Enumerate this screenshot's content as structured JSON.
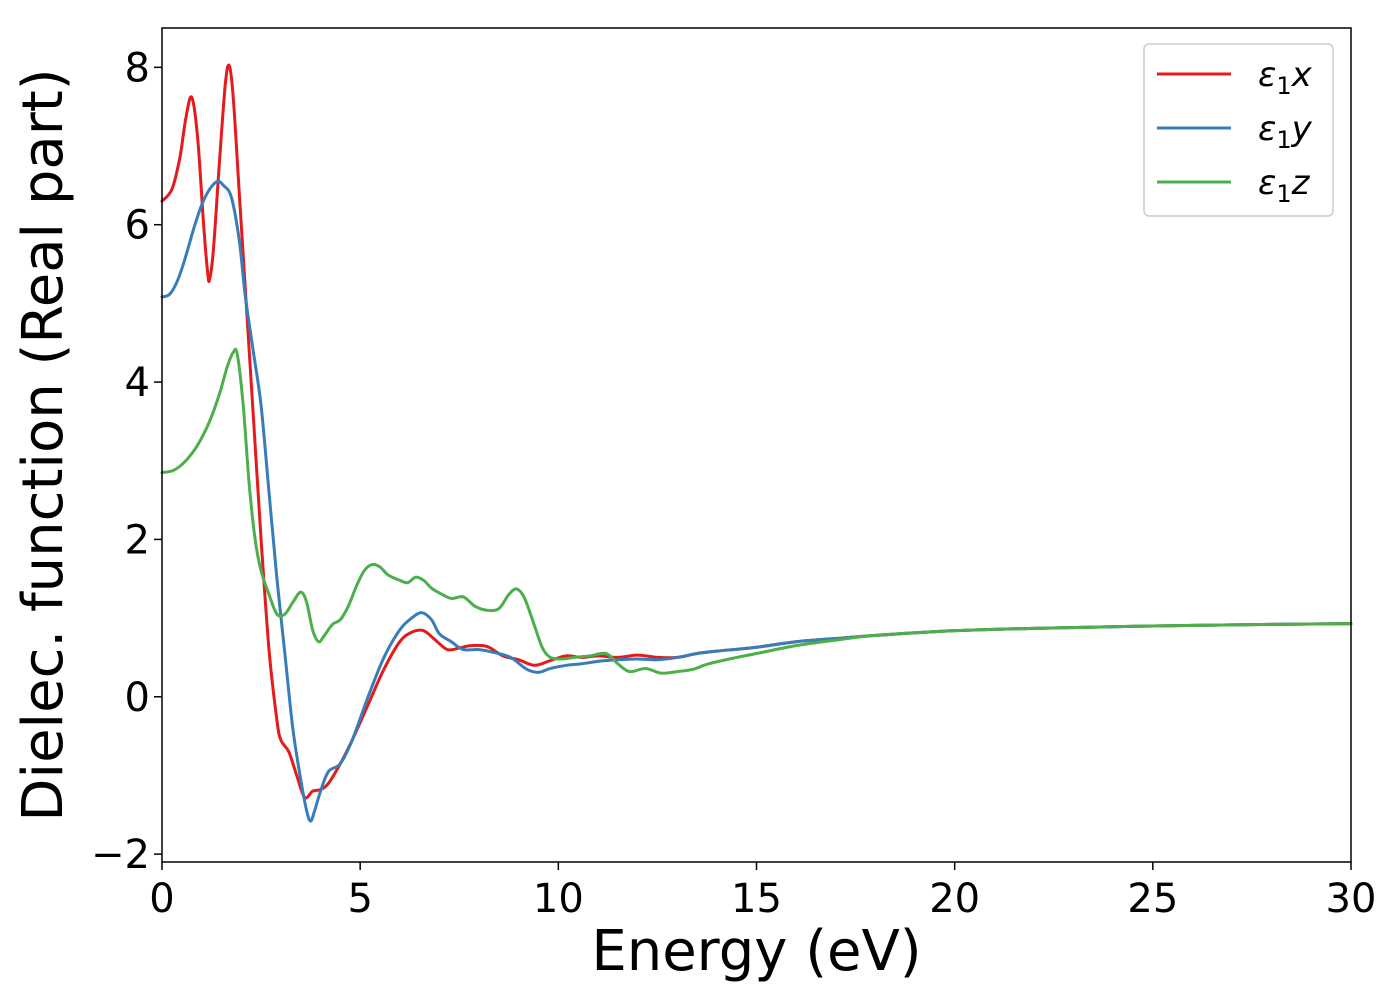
{
  "chart_data": {
    "type": "line",
    "xlabel": "Energy (eV)",
    "ylabel": "Dielec. function (Real part)",
    "xlim": [
      0,
      30
    ],
    "ylim": [
      -2.1,
      8.5
    ],
    "xticks": [
      0,
      5,
      10,
      15,
      20,
      25,
      30
    ],
    "yticks": [
      -2,
      0,
      2,
      4,
      6,
      8
    ],
    "xtick_labels": [
      "0",
      "5",
      "10",
      "15",
      "20",
      "25",
      "30"
    ],
    "ytick_labels": [
      "−2",
      "0",
      "2",
      "4",
      "6",
      "8"
    ],
    "grid": false,
    "legend_position": "top-right",
    "series": [
      {
        "name": "ε1x",
        "color": "#e41a1c",
        "points": [
          [
            0,
            6.3
          ],
          [
            0.25,
            6.45
          ],
          [
            0.45,
            6.85
          ],
          [
            0.6,
            7.35
          ],
          [
            0.75,
            7.62
          ],
          [
            0.9,
            7.1
          ],
          [
            1.05,
            6.0
          ],
          [
            1.15,
            5.4
          ],
          [
            1.2,
            5.3
          ],
          [
            1.3,
            5.7
          ],
          [
            1.45,
            6.8
          ],
          [
            1.6,
            7.8
          ],
          [
            1.7,
            8.02
          ],
          [
            1.8,
            7.6
          ],
          [
            1.95,
            6.4
          ],
          [
            2.1,
            5.2
          ],
          [
            2.3,
            3.6
          ],
          [
            2.5,
            2.0
          ],
          [
            2.7,
            0.6
          ],
          [
            2.9,
            -0.3
          ],
          [
            3.0,
            -0.55
          ],
          [
            3.2,
            -0.7
          ],
          [
            3.4,
            -1.0
          ],
          [
            3.6,
            -1.28
          ],
          [
            3.8,
            -1.2
          ],
          [
            4.0,
            -1.18
          ],
          [
            4.2,
            -1.1
          ],
          [
            4.5,
            -0.85
          ],
          [
            4.8,
            -0.55
          ],
          [
            5.2,
            -0.1
          ],
          [
            5.6,
            0.35
          ],
          [
            6.0,
            0.7
          ],
          [
            6.3,
            0.82
          ],
          [
            6.6,
            0.84
          ],
          [
            6.9,
            0.72
          ],
          [
            7.2,
            0.6
          ],
          [
            7.5,
            0.62
          ],
          [
            7.8,
            0.65
          ],
          [
            8.2,
            0.64
          ],
          [
            8.6,
            0.52
          ],
          [
            9.0,
            0.47
          ],
          [
            9.4,
            0.4
          ],
          [
            9.8,
            0.46
          ],
          [
            10.2,
            0.52
          ],
          [
            10.6,
            0.5
          ],
          [
            11.0,
            0.52
          ],
          [
            11.5,
            0.5
          ],
          [
            12.0,
            0.53
          ],
          [
            12.5,
            0.5
          ],
          [
            13.0,
            0.5
          ],
          [
            13.5,
            0.55
          ],
          [
            14.0,
            0.58
          ],
          [
            15.0,
            0.63
          ],
          [
            16.0,
            0.7
          ],
          [
            17.0,
            0.74
          ],
          [
            18.0,
            0.78
          ],
          [
            20.0,
            0.84
          ],
          [
            22.0,
            0.87
          ],
          [
            25.0,
            0.9
          ],
          [
            28.0,
            0.92
          ],
          [
            30.0,
            0.93
          ]
        ]
      },
      {
        "name": "ε1y",
        "color": "#377eb8",
        "points": [
          [
            0,
            5.08
          ],
          [
            0.2,
            5.12
          ],
          [
            0.4,
            5.3
          ],
          [
            0.6,
            5.6
          ],
          [
            0.8,
            5.95
          ],
          [
            1.0,
            6.25
          ],
          [
            1.2,
            6.45
          ],
          [
            1.4,
            6.55
          ],
          [
            1.55,
            6.5
          ],
          [
            1.75,
            6.35
          ],
          [
            1.95,
            5.8
          ],
          [
            2.1,
            5.1
          ],
          [
            2.3,
            4.4
          ],
          [
            2.5,
            3.7
          ],
          [
            2.7,
            2.6
          ],
          [
            2.9,
            1.5
          ],
          [
            3.1,
            0.55
          ],
          [
            3.3,
            -0.4
          ],
          [
            3.5,
            -1.05
          ],
          [
            3.65,
            -1.45
          ],
          [
            3.75,
            -1.58
          ],
          [
            3.85,
            -1.45
          ],
          [
            4.0,
            -1.2
          ],
          [
            4.2,
            -0.95
          ],
          [
            4.5,
            -0.85
          ],
          [
            4.8,
            -0.55
          ],
          [
            5.2,
            0.0
          ],
          [
            5.6,
            0.5
          ],
          [
            6.0,
            0.85
          ],
          [
            6.3,
            1.0
          ],
          [
            6.55,
            1.07
          ],
          [
            6.8,
            0.98
          ],
          [
            7.0,
            0.8
          ],
          [
            7.3,
            0.7
          ],
          [
            7.6,
            0.6
          ],
          [
            8.0,
            0.6
          ],
          [
            8.4,
            0.56
          ],
          [
            8.8,
            0.5
          ],
          [
            9.2,
            0.35
          ],
          [
            9.5,
            0.31
          ],
          [
            9.8,
            0.36
          ],
          [
            10.2,
            0.4
          ],
          [
            10.6,
            0.42
          ],
          [
            11.0,
            0.45
          ],
          [
            11.5,
            0.47
          ],
          [
            12.0,
            0.48
          ],
          [
            12.5,
            0.47
          ],
          [
            13.0,
            0.5
          ],
          [
            13.5,
            0.55
          ],
          [
            14.0,
            0.58
          ],
          [
            15.0,
            0.63
          ],
          [
            16.0,
            0.7
          ],
          [
            17.0,
            0.74
          ],
          [
            18.0,
            0.78
          ],
          [
            20.0,
            0.84
          ],
          [
            22.0,
            0.87
          ],
          [
            25.0,
            0.9
          ],
          [
            28.0,
            0.92
          ],
          [
            30.0,
            0.93
          ]
        ]
      },
      {
        "name": "ε1z",
        "color": "#4daf4a",
        "points": [
          [
            0,
            2.85
          ],
          [
            0.3,
            2.88
          ],
          [
            0.6,
            3.0
          ],
          [
            0.9,
            3.2
          ],
          [
            1.2,
            3.5
          ],
          [
            1.45,
            3.85
          ],
          [
            1.65,
            4.2
          ],
          [
            1.8,
            4.38
          ],
          [
            1.9,
            4.35
          ],
          [
            2.05,
            3.7
          ],
          [
            2.2,
            2.7
          ],
          [
            2.35,
            2.0
          ],
          [
            2.5,
            1.6
          ],
          [
            2.7,
            1.3
          ],
          [
            2.9,
            1.05
          ],
          [
            3.1,
            1.05
          ],
          [
            3.3,
            1.2
          ],
          [
            3.5,
            1.33
          ],
          [
            3.65,
            1.2
          ],
          [
            3.8,
            0.85
          ],
          [
            3.95,
            0.7
          ],
          [
            4.1,
            0.78
          ],
          [
            4.3,
            0.92
          ],
          [
            4.5,
            0.98
          ],
          [
            4.7,
            1.15
          ],
          [
            4.9,
            1.4
          ],
          [
            5.1,
            1.6
          ],
          [
            5.3,
            1.68
          ],
          [
            5.5,
            1.65
          ],
          [
            5.7,
            1.55
          ],
          [
            6.0,
            1.48
          ],
          [
            6.2,
            1.45
          ],
          [
            6.4,
            1.52
          ],
          [
            6.6,
            1.48
          ],
          [
            6.8,
            1.38
          ],
          [
            7.0,
            1.32
          ],
          [
            7.3,
            1.25
          ],
          [
            7.6,
            1.27
          ],
          [
            7.9,
            1.15
          ],
          [
            8.2,
            1.1
          ],
          [
            8.5,
            1.12
          ],
          [
            8.75,
            1.3
          ],
          [
            8.95,
            1.37
          ],
          [
            9.15,
            1.25
          ],
          [
            9.4,
            0.9
          ],
          [
            9.6,
            0.62
          ],
          [
            9.8,
            0.5
          ],
          [
            10.1,
            0.48
          ],
          [
            10.4,
            0.5
          ],
          [
            10.8,
            0.52
          ],
          [
            11.2,
            0.55
          ],
          [
            11.5,
            0.42
          ],
          [
            11.8,
            0.32
          ],
          [
            12.2,
            0.36
          ],
          [
            12.6,
            0.3
          ],
          [
            13.0,
            0.32
          ],
          [
            13.4,
            0.35
          ],
          [
            13.8,
            0.42
          ],
          [
            14.5,
            0.5
          ],
          [
            15.0,
            0.55
          ],
          [
            16.0,
            0.65
          ],
          [
            17.0,
            0.72
          ],
          [
            18.0,
            0.78
          ],
          [
            20.0,
            0.84
          ],
          [
            22.0,
            0.87
          ],
          [
            25.0,
            0.9
          ],
          [
            28.0,
            0.92
          ],
          [
            30.0,
            0.93
          ]
        ]
      }
    ]
  }
}
